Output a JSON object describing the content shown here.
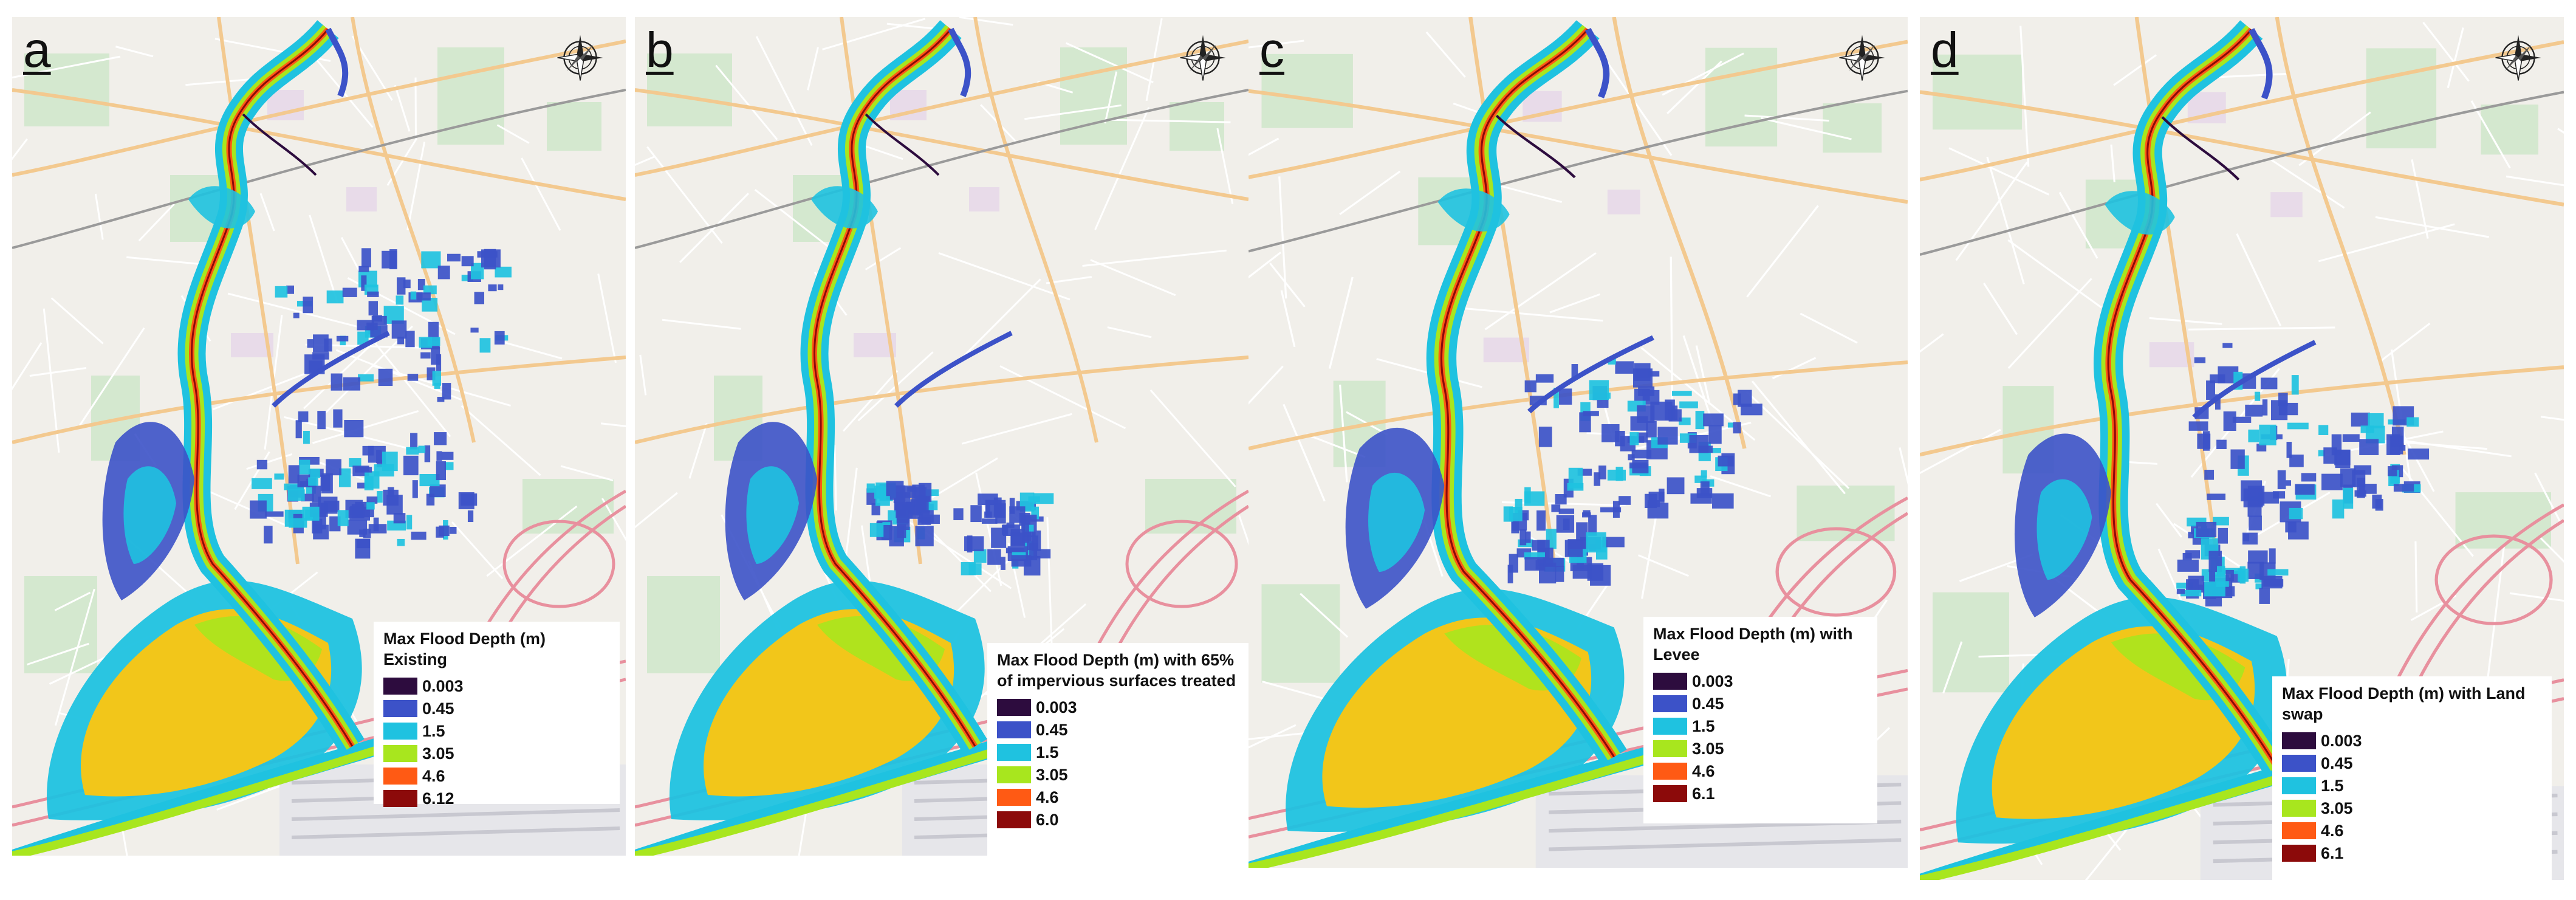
{
  "panels": [
    {
      "letter": "a",
      "legend_title": "Max Flood Depth (m) Existing",
      "values": [
        "0.003",
        "0.45",
        "1.5",
        "3.05",
        "4.6",
        "6.12"
      ]
    },
    {
      "letter": "b",
      "legend_title": "Max Flood Depth (m) with 65% of impervious surfaces treated",
      "values": [
        "0.003",
        "0.45",
        "1.5",
        "3.05",
        "4.6",
        "6.0"
      ]
    },
    {
      "letter": "c",
      "legend_title": "Max Flood Depth (m) with Levee",
      "values": [
        "0.003",
        "0.45",
        "1.5",
        "3.05",
        "4.6",
        "6.1"
      ]
    },
    {
      "letter": "d",
      "legend_title": "Max Flood Depth (m) with Land swap",
      "values": [
        "0.003",
        "0.45",
        "1.5",
        "3.05",
        "4.6",
        "6.1"
      ]
    }
  ],
  "legend_colors": [
    "#2d0c3e",
    "#3c52c8",
    "#1fc2e0",
    "#a8e61e",
    "#ff5a14",
    "#8c0a0a"
  ],
  "map_colors": {
    "background": "#f1efea",
    "road_major": "#f3c98f",
    "road_minor": "#ffffff",
    "highway": "#e8909e",
    "park": "#cde6c8",
    "water": "#aad3df"
  },
  "icons": {
    "compass": "compass-rose-icon"
  }
}
